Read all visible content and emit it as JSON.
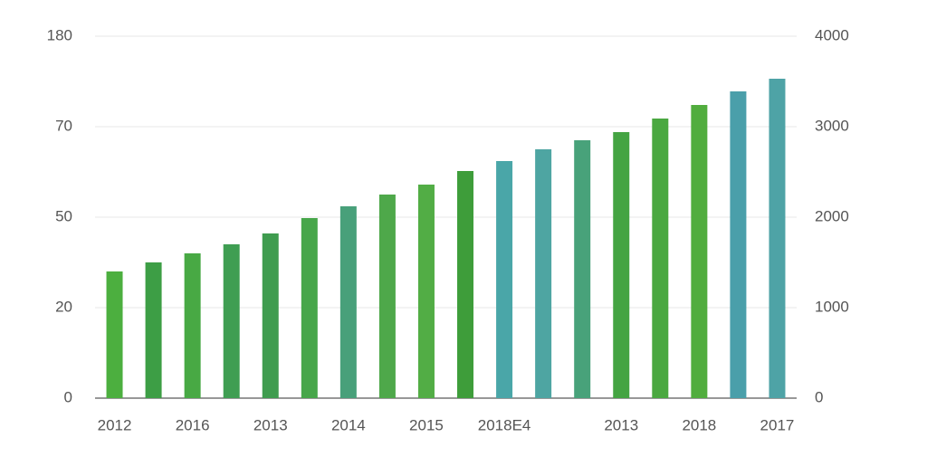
{
  "chart_data": {
    "type": "bar",
    "categories": [
      "2012",
      null,
      "2016",
      null,
      "2013",
      null,
      "2014",
      null,
      "2015",
      null,
      "2018E4",
      null,
      null,
      "2013",
      null,
      "2018",
      null,
      "2017"
    ],
    "values": [
      1400,
      1500,
      1600,
      1700,
      1820,
      1990,
      2120,
      2250,
      2360,
      2510,
      2620,
      2750,
      2850,
      2940,
      3090,
      3240,
      3390,
      3530
    ],
    "colors": [
      "#4caf3f",
      "#3d9e45",
      "#48a944",
      "#3f9e52",
      "#3f9c4f",
      "#47a64a",
      "#48a07a",
      "#4ea84a",
      "#52ad45",
      "#3e9d3a",
      "#4aa6a8",
      "#4ea5a2",
      "#48a27a",
      "#44a442",
      "#4aa840",
      "#51ad3e",
      "#4a9faa",
      "#4ea3a6"
    ],
    "left_axis_labels": [
      "180",
      "70",
      "50",
      "20",
      "0"
    ],
    "ylim": [
      0,
      4000
    ],
    "yticks": [
      0,
      1000,
      2000,
      3000,
      4000
    ],
    "grid": true
  }
}
